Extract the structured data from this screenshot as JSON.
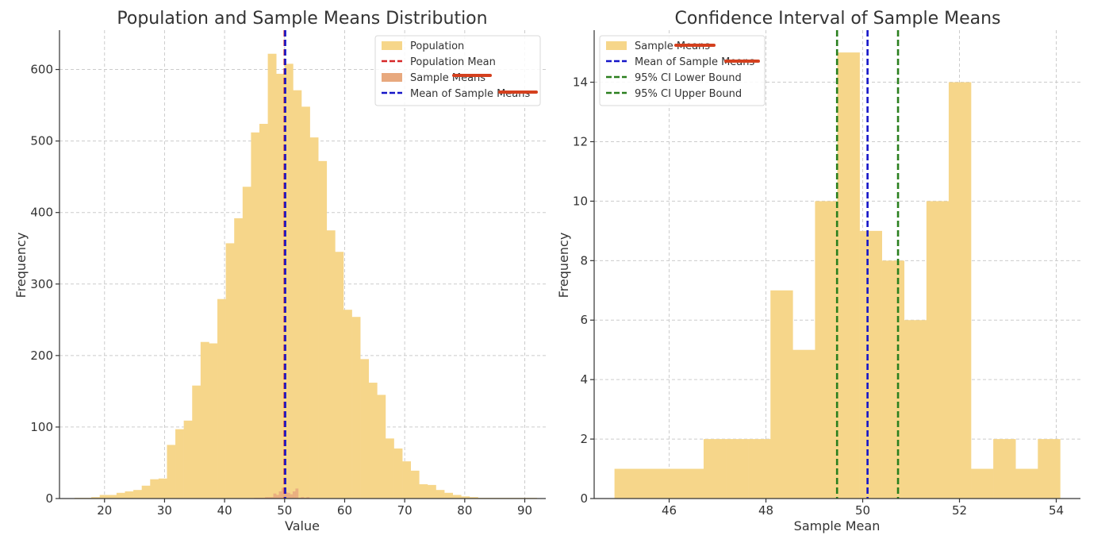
{
  "chart_data": [
    {
      "type": "histogram",
      "title": "Population and Sample Means Distribution",
      "xlabel": "Value",
      "ylabel": "Frequency",
      "xlim": [
        12.5,
        93.5
      ],
      "ylim": [
        0,
        655
      ],
      "xticks": [
        20,
        30,
        40,
        50,
        60,
        70,
        80,
        90
      ],
      "yticks": [
        0,
        100,
        200,
        300,
        400,
        500,
        600
      ],
      "series": [
        {
          "name": "Population",
          "kind": "hist",
          "color": "#F6D68A",
          "bin_start": 15.0,
          "bin_width": 1.4,
          "counts": [
            1,
            1,
            2,
            5,
            5,
            8,
            10,
            12,
            18,
            27,
            28,
            75,
            97,
            109,
            158,
            219,
            217,
            279,
            357,
            392,
            436,
            512,
            524,
            622,
            594,
            608,
            571,
            548,
            505,
            472,
            375,
            345,
            264,
            254,
            195,
            162,
            145,
            84,
            70,
            52,
            39,
            20,
            19,
            12,
            8,
            5,
            3,
            2,
            1,
            1,
            1,
            1,
            1,
            1,
            1
          ]
        },
        {
          "name": "Sample Means",
          "kind": "hist",
          "color": "#E8A97E",
          "bin_start": 44.9,
          "bin_width": 0.46,
          "counts": [
            1,
            1,
            1,
            1,
            2,
            2,
            2,
            7,
            5,
            10,
            15,
            9,
            8,
            6,
            10,
            14,
            1,
            2,
            1,
            2
          ]
        },
        {
          "name": "Population Mean",
          "kind": "vline",
          "style": "dashed",
          "color": "#D62728",
          "x": 50.0
        },
        {
          "name": "Mean of Sample Means",
          "kind": "vline",
          "style": "dashed",
          "color": "#1515C8",
          "x": 50.1
        }
      ],
      "legend": {
        "position": "top-right",
        "entries": [
          "Population",
          "Population Mean",
          "Sample Means",
          "Mean of Sample Means"
        ]
      },
      "grid": true
    },
    {
      "type": "histogram",
      "title": "Confidence Interval of Sample Means",
      "xlabel": "Sample Mean",
      "ylabel": "Frequency",
      "xlim": [
        44.45,
        54.5
      ],
      "ylim": [
        0,
        15.75
      ],
      "xticks": [
        46,
        48,
        50,
        52,
        54
      ],
      "yticks": [
        0,
        2,
        4,
        6,
        8,
        10,
        12,
        14
      ],
      "series": [
        {
          "name": "Sample Means",
          "kind": "hist",
          "color": "#F6D68A",
          "bin_start": 44.87,
          "bin_width": 0.4605,
          "counts": [
            1,
            1,
            1,
            1,
            2,
            2,
            2,
            7,
            5,
            10,
            15,
            9,
            8,
            6,
            10,
            14,
            1,
            2,
            1,
            2
          ]
        },
        {
          "name": "Mean of Sample Means",
          "kind": "vline",
          "style": "dashed",
          "color": "#1515C8",
          "x": 50.1
        },
        {
          "name": "95% CI Lower Bound",
          "kind": "vline",
          "style": "dashed",
          "color": "#2A7F1E",
          "x": 49.47
        },
        {
          "name": "95% CI Upper Bound",
          "kind": "vline",
          "style": "dashed",
          "color": "#2A7F1E",
          "x": 50.73
        }
      ],
      "legend": {
        "position": "top-left",
        "entries": [
          "Sample Means",
          "Mean of Sample Means",
          "95% CI Lower Bound",
          "95% CI Upper Bound"
        ]
      },
      "grid": true
    }
  ],
  "annotations": {
    "redaction_color": "#D4401E"
  }
}
